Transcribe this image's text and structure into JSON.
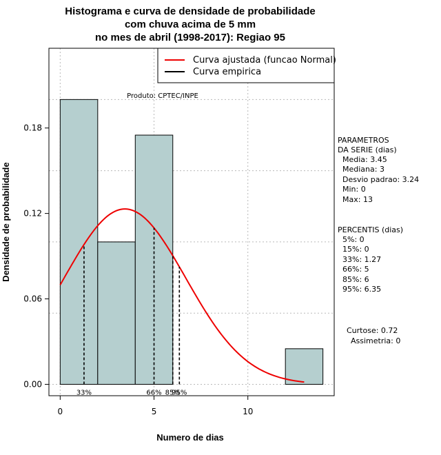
{
  "chart_data": {
    "type": "bar",
    "title_lines": [
      "Histograma e curva de densidade de probabilidade",
      "com chuva acima de 5 mm",
      "no mes de abril (1998-2017): Regiao 95"
    ],
    "xlabel": "Numero de dias",
    "ylabel": "Densidade de probabilidade",
    "xlim": [
      -0.6,
      14.6
    ],
    "ylim": [
      -0.008,
      0.236
    ],
    "x_ticks": [
      0,
      5,
      10
    ],
    "y_ticks": [
      0.0,
      0.06,
      0.12,
      0.18
    ],
    "y_tick_labels": [
      "0.00",
      "0.06",
      "0.12",
      "0.18"
    ],
    "grid": true,
    "bins": [
      {
        "start": 0,
        "end": 2,
        "density": 0.2
      },
      {
        "start": 2,
        "end": 4,
        "density": 0.1
      },
      {
        "start": 4,
        "end": 6,
        "density": 0.175
      },
      {
        "start": 12,
        "end": 14,
        "density": 0.025
      }
    ],
    "normal_fit": {
      "mean": 3.45,
      "sd": 3.24,
      "x_from": 0,
      "x_to": 13,
      "color": "#ee0000"
    },
    "percentile_lines": [
      {
        "label": "33%",
        "x": 1.27
      },
      {
        "label": "66%",
        "x": 5
      },
      {
        "label": "85%",
        "x": 6
      },
      {
        "label": "95%",
        "x": 6.35
      }
    ],
    "legend": [
      {
        "label": "Curva ajustada (funcao Normal)",
        "color": "#ee0000"
      },
      {
        "label": "Curva empirica",
        "color": "#000000"
      }
    ],
    "source_note": "Produto: CPTEC/INPE",
    "bar_fill": "#b5cfcf"
  },
  "side_panel": {
    "parametros_title": "PARAMETROS",
    "parametros_subtitle": "DA SERIE (dias)",
    "parametros": [
      "Media: 3.45",
      "Mediana: 3",
      "Desvio padrao: 3.24",
      "Min: 0",
      "Max: 13"
    ],
    "percentis_title": "PERCENTIS (dias)",
    "percentis": [
      "5%: 0",
      "15%: 0",
      "33%: 1.27",
      "66%: 5",
      "85%: 6",
      "95%: 6.35"
    ],
    "curtose": "Curtose: 0.72",
    "assimetria": "Assimetria: 0"
  }
}
